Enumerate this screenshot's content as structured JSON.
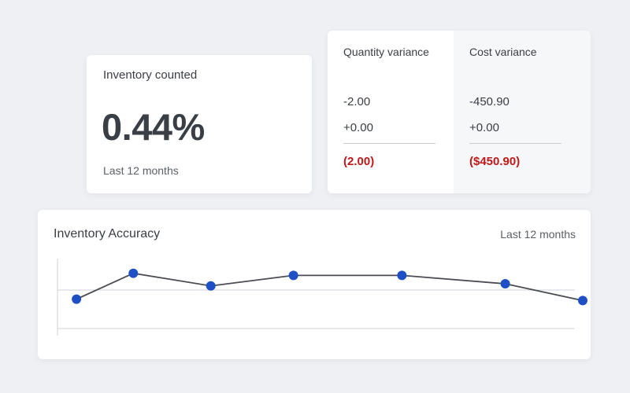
{
  "colors": {
    "background": "#eef0f4",
    "card": "#ffffff",
    "text": "#3a3e45",
    "muted_text": "#5b6068",
    "negative_total": "#c01818",
    "series_point": "#1f4fc4",
    "series_line": "#4a4d53",
    "gridline": "#cfd2d7"
  },
  "inventory_counted": {
    "title": "Inventory counted",
    "value": "0.44%",
    "period": "Last 12 months"
  },
  "variance": {
    "quantity": {
      "header": "Quantity variance",
      "row1": "-2.00",
      "row2": "+0.00",
      "total": "(2.00)"
    },
    "cost": {
      "header": "Cost variance",
      "row1": "-450.90",
      "row2": "+0.00",
      "total": "($450.90)"
    }
  },
  "accuracy": {
    "title": "Inventory Accuracy",
    "period": "Last 12 months"
  },
  "chart_data": {
    "type": "line",
    "title": "Inventory Accuracy",
    "xlabel": "",
    "ylabel": "",
    "grid": true,
    "x_positions": [
      0.02,
      0.13,
      0.28,
      0.44,
      0.65,
      0.85,
      1.0
    ],
    "series": [
      {
        "values": [
          0.42,
          0.79,
          0.61,
          0.76,
          0.76,
          0.64,
          0.4
        ]
      }
    ],
    "ylim": [
      0,
      1
    ]
  }
}
